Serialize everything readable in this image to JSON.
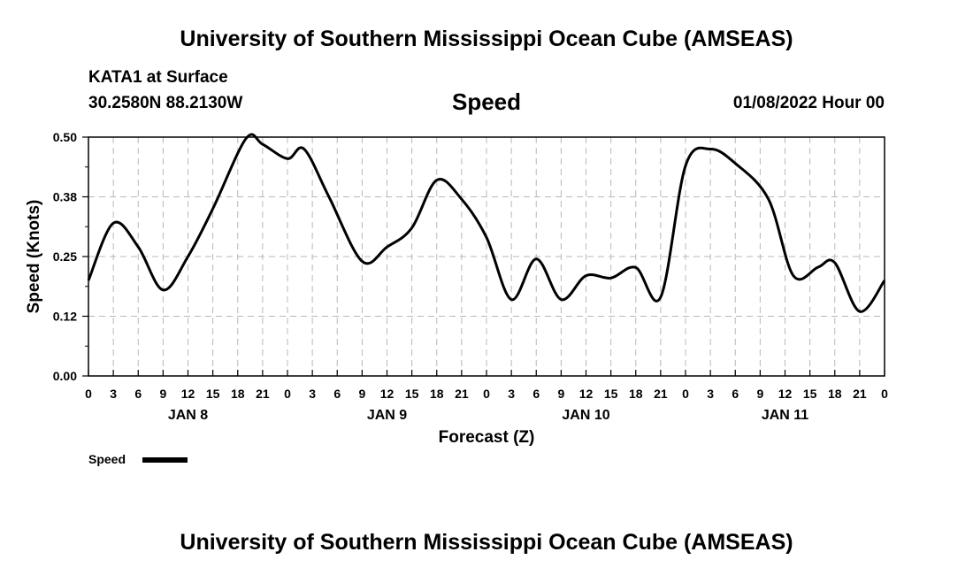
{
  "header": {
    "title": "University of Southern Mississippi Ocean Cube (AMSEAS)",
    "station": "KATA1 at Surface",
    "coordinates": "30.2580N  88.2130W",
    "variable": "Speed",
    "datetime": "01/08/2022 Hour 00",
    "footer_title": "University of Southern Mississippi Ocean Cube (AMSEAS)"
  },
  "chart_data": {
    "type": "line",
    "title": "Speed",
    "xlabel": "Forecast (Z)",
    "ylabel": "Speed (Knots)",
    "x_unit": "hours since 01/08/2022 00Z",
    "xlim": [
      0,
      96
    ],
    "ylim": [
      0,
      0.5
    ],
    "y_ticks": [
      "0.00",
      "0.12",
      "0.25",
      "0.38",
      "0.50"
    ],
    "y_tick_values": [
      0,
      0.125,
      0.25,
      0.375,
      0.5
    ],
    "x_tick_labels": [
      "0",
      "3",
      "6",
      "9",
      "12",
      "15",
      "18",
      "21",
      "0",
      "3",
      "6",
      "9",
      "12",
      "15",
      "18",
      "21",
      "0",
      "3",
      "6",
      "9",
      "12",
      "15",
      "18",
      "21",
      "0",
      "3",
      "6",
      "9",
      "12",
      "15",
      "18",
      "21",
      "0"
    ],
    "day_labels": [
      {
        "label": "JAN 8",
        "hour": 12
      },
      {
        "label": "JAN 9",
        "hour": 36
      },
      {
        "label": "JAN 10",
        "hour": 60
      },
      {
        "label": "JAN 11",
        "hour": 84
      }
    ],
    "grid": true,
    "legend": "bottom-left",
    "series": [
      {
        "name": "Speed",
        "x": [
          0,
          3,
          6,
          9,
          12,
          15,
          19,
          21,
          24,
          26,
          29,
          33,
          36,
          39,
          42,
          45,
          48,
          51,
          54,
          57,
          60,
          63,
          66,
          69,
          72,
          75,
          78,
          82,
          85,
          88,
          90,
          93,
          96
        ],
        "values": [
          0.2,
          0.32,
          0.27,
          0.18,
          0.25,
          0.35,
          0.497,
          0.485,
          0.455,
          0.475,
          0.375,
          0.24,
          0.27,
          0.31,
          0.41,
          0.37,
          0.29,
          0.16,
          0.245,
          0.16,
          0.21,
          0.205,
          0.227,
          0.165,
          0.44,
          0.475,
          0.445,
          0.37,
          0.21,
          0.228,
          0.237,
          0.135,
          0.2
        ]
      }
    ]
  }
}
